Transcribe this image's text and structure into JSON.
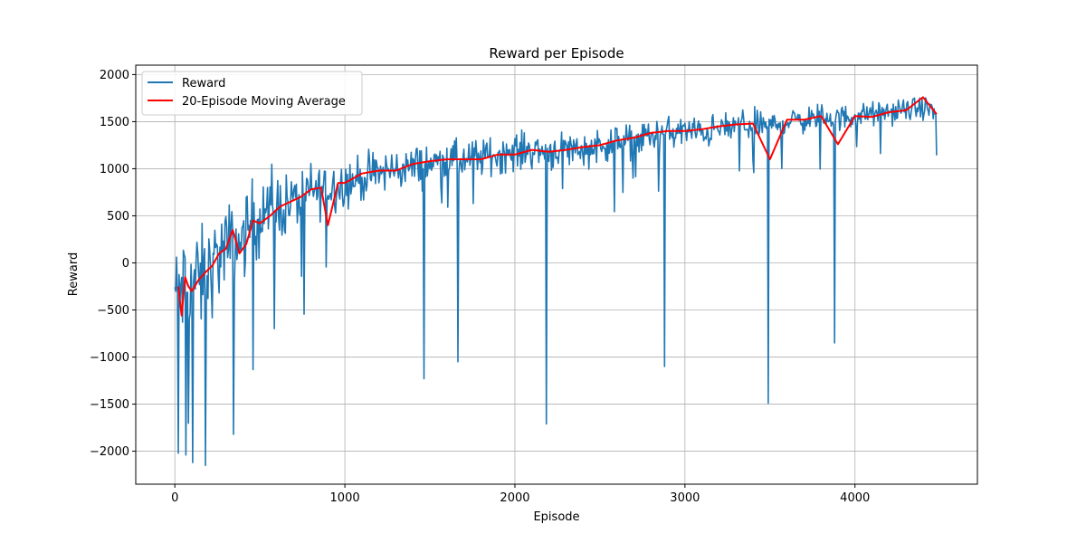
{
  "chart_data": {
    "type": "line",
    "title": "Reward per Episode",
    "xlabel": "Episode",
    "ylabel": "Reward",
    "xlim": [
      -230,
      4720
    ],
    "ylim": [
      -2350,
      2100
    ],
    "x_ticks": [
      0,
      1000,
      2000,
      3000,
      4000
    ],
    "y_ticks": [
      -2000,
      -1500,
      -1000,
      -500,
      0,
      500,
      1000,
      1500,
      2000
    ],
    "grid": true,
    "legend_position": "top-left",
    "colors": {
      "reward": "#1f77b4",
      "moving_average": "#ff0000",
      "grid": "#b0b0b0"
    },
    "series": [
      {
        "name": "Reward",
        "x": [
          0,
          20,
          40,
          60,
          80,
          100,
          120,
          140,
          160,
          180,
          200,
          250,
          300,
          350,
          400,
          450,
          500,
          600,
          700,
          800,
          900,
          1000,
          1100,
          1200,
          1300,
          1400,
          1500,
          1600,
          1700,
          1800,
          1900,
          2000,
          2100,
          2200,
          2300,
          2400,
          2500,
          2600,
          2700,
          2800,
          2900,
          3000,
          3100,
          3200,
          3300,
          3400,
          3500,
          3600,
          3700,
          3800,
          3900,
          4000,
          4100,
          4200,
          4300,
          4400,
          4480
        ],
        "mean": [
          -300,
          -350,
          -250,
          -280,
          -200,
          -220,
          -150,
          -250,
          -180,
          -120,
          -100,
          50,
          150,
          200,
          250,
          450,
          500,
          600,
          650,
          750,
          800,
          850,
          900,
          950,
          1000,
          1020,
          1050,
          1100,
          1080,
          1120,
          1150,
          1180,
          1200,
          1180,
          1220,
          1200,
          1250,
          1280,
          1300,
          1350,
          1380,
          1400,
          1380,
          1420,
          1450,
          1480,
          1450,
          1500,
          1520,
          1550,
          1530,
          1560,
          1580,
          1600,
          1620,
          1650,
          1600
        ],
        "spread": [
          600,
          700,
          750,
          750,
          750,
          700,
          700,
          700,
          700,
          650,
          650,
          600,
          600,
          550,
          550,
          550,
          500,
          450,
          400,
          400,
          350,
          350,
          300,
          300,
          280,
          280,
          270,
          270,
          260,
          260,
          250,
          250,
          250,
          250,
          240,
          240,
          240,
          230,
          230,
          220,
          220,
          210,
          210,
          200,
          200,
          200,
          190,
          190,
          180,
          180,
          170,
          170,
          160,
          160,
          150,
          150,
          150
        ],
        "dips": [
          [
            20,
            -2020
          ],
          [
            65,
            -2040
          ],
          [
            105,
            -2120
          ],
          [
            180,
            -2150
          ],
          [
            345,
            -1820
          ],
          [
            1465,
            -1230
          ],
          [
            1665,
            -1050
          ],
          [
            2185,
            -1710
          ],
          [
            2880,
            -1100
          ],
          [
            3490,
            -1490
          ],
          [
            3880,
            -850
          ]
        ],
        "max_y": 1900
      },
      {
        "name": "20-Episode Moving Average",
        "x": [
          20,
          40,
          60,
          80,
          100,
          140,
          180,
          220,
          260,
          300,
          340,
          380,
          420,
          460,
          500,
          560,
          620,
          680,
          740,
          800,
          860,
          900,
          960,
          1000,
          1100,
          1200,
          1300,
          1400,
          1500,
          1600,
          1700,
          1800,
          1900,
          2000,
          2100,
          2200,
          2300,
          2400,
          2500,
          2600,
          2700,
          2800,
          2900,
          3000,
          3100,
          3200,
          3300,
          3400,
          3500,
          3600,
          3700,
          3800,
          3900,
          4000,
          4100,
          4200,
          4300,
          4400,
          4480
        ],
        "y": [
          -250,
          -560,
          -150,
          -250,
          -300,
          -180,
          -100,
          -30,
          100,
          150,
          350,
          100,
          200,
          450,
          420,
          500,
          600,
          650,
          700,
          780,
          800,
          400,
          850,
          850,
          950,
          980,
          980,
          1050,
          1080,
          1100,
          1100,
          1100,
          1150,
          1150,
          1200,
          1180,
          1200,
          1230,
          1250,
          1300,
          1330,
          1380,
          1400,
          1400,
          1420,
          1450,
          1470,
          1480,
          1100,
          1520,
          1520,
          1560,
          1260,
          1560,
          1550,
          1600,
          1620,
          1760,
          1580
        ]
      }
    ]
  }
}
